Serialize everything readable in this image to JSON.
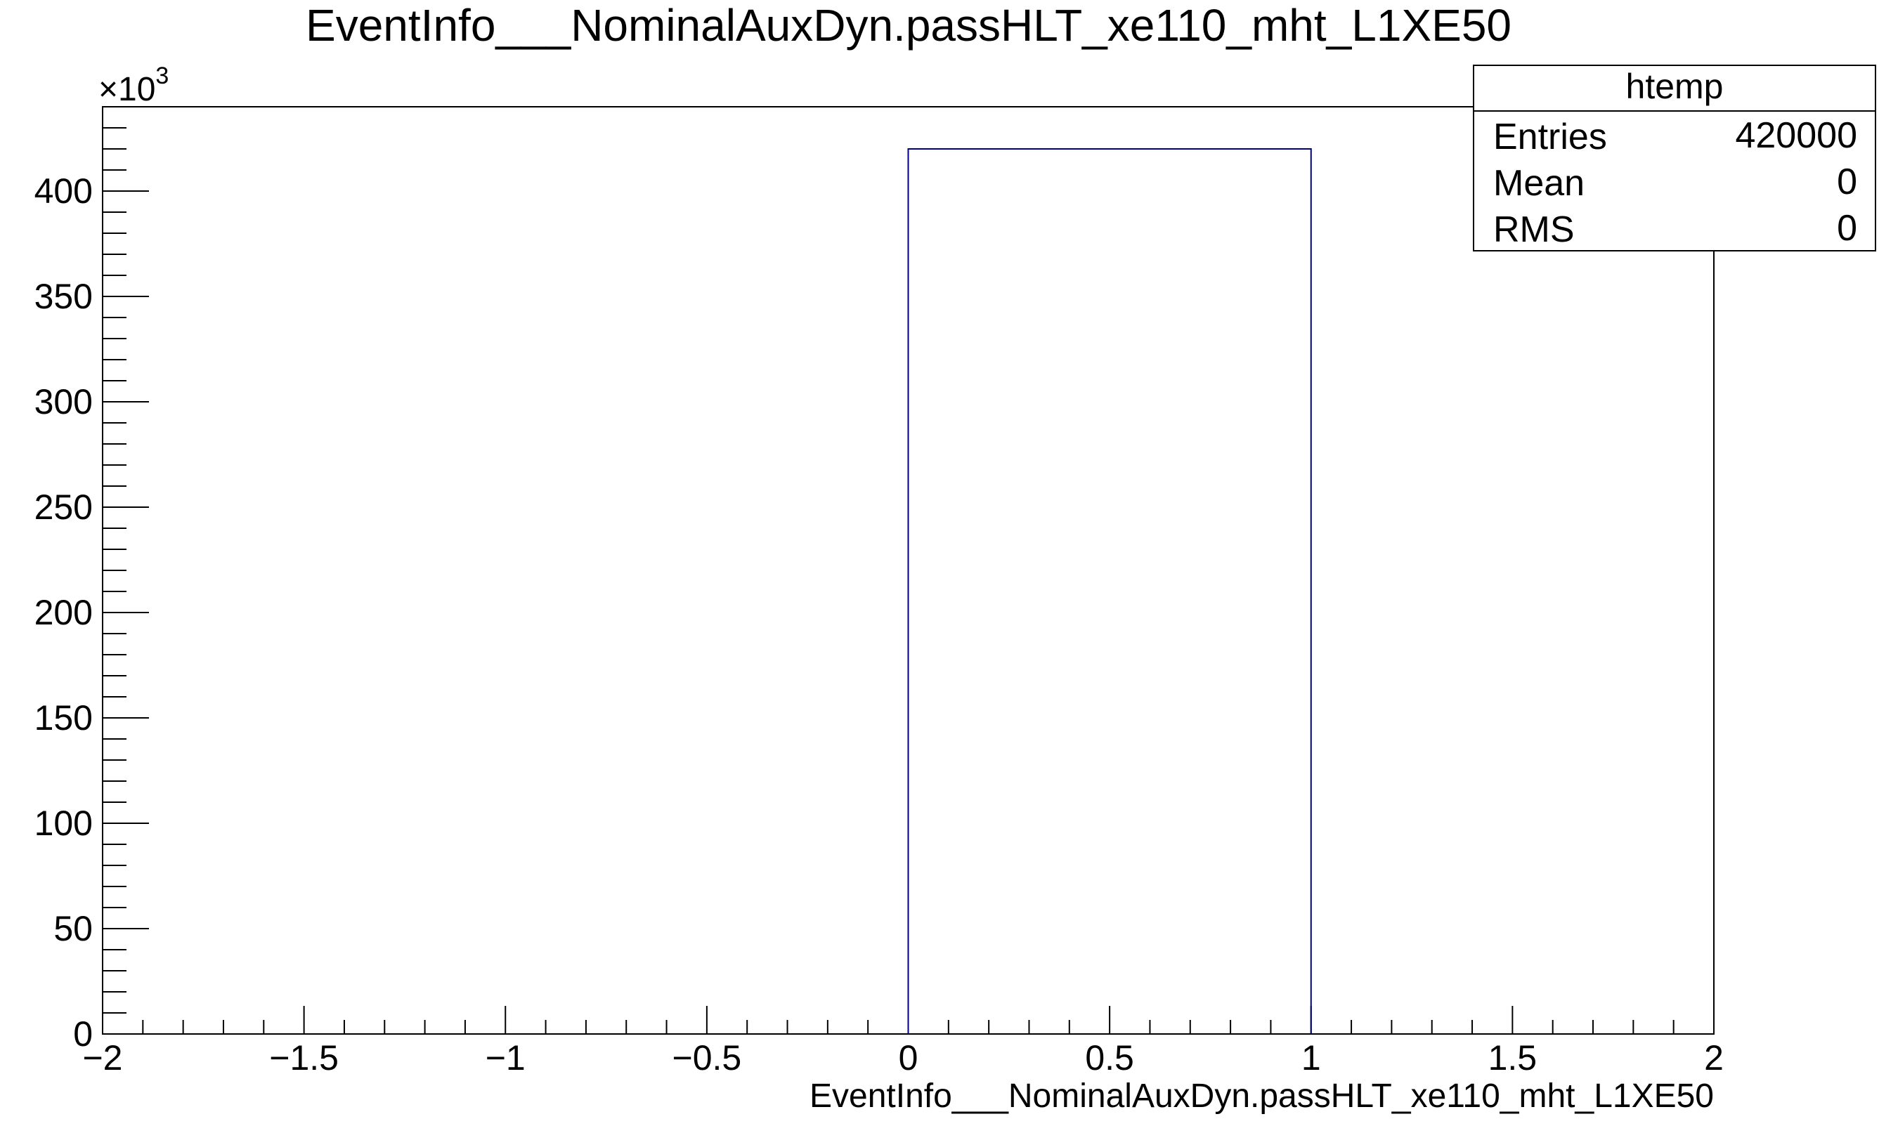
{
  "chart_data": {
    "type": "bar",
    "title": "EventInfo___NominalAuxDyn.passHLT_xe110_mht_L1XE50",
    "xlabel": "EventInfo___NominalAuxDyn.passHLT_xe110_mht_L1XE50",
    "ylabel": "",
    "y_exponent_label": "×10",
    "y_exponent_power": "3",
    "xlim": [
      -2,
      2
    ],
    "ylim": [
      0,
      440
    ],
    "x_ticks": [
      {
        "value": -2,
        "label": "−2"
      },
      {
        "value": -1.5,
        "label": "−1.5"
      },
      {
        "value": -1,
        "label": "−1"
      },
      {
        "value": -0.5,
        "label": "−0.5"
      },
      {
        "value": 0,
        "label": "0"
      },
      {
        "value": 0.5,
        "label": "0.5"
      },
      {
        "value": 1,
        "label": "1"
      },
      {
        "value": 1.5,
        "label": "1.5"
      },
      {
        "value": 2,
        "label": "2"
      }
    ],
    "y_ticks": [
      {
        "value": 0,
        "label": "0"
      },
      {
        "value": 50,
        "label": "50"
      },
      {
        "value": 100,
        "label": "100"
      },
      {
        "value": 150,
        "label": "150"
      },
      {
        "value": 200,
        "label": "200"
      },
      {
        "value": 250,
        "label": "250"
      },
      {
        "value": 300,
        "label": "300"
      },
      {
        "value": 350,
        "label": "350"
      },
      {
        "value": 400,
        "label": "400"
      }
    ],
    "bins": [
      {
        "x_low": 0,
        "x_high": 1,
        "value": 420
      }
    ],
    "line_color": "#000080",
    "grid": false,
    "stats_box": {
      "placement": "top-right",
      "title": "htemp",
      "rows": [
        {
          "label": "Entries",
          "value": "420000"
        },
        {
          "label": "Mean",
          "value": "0"
        },
        {
          "label": "RMS",
          "value": "0"
        }
      ]
    }
  }
}
